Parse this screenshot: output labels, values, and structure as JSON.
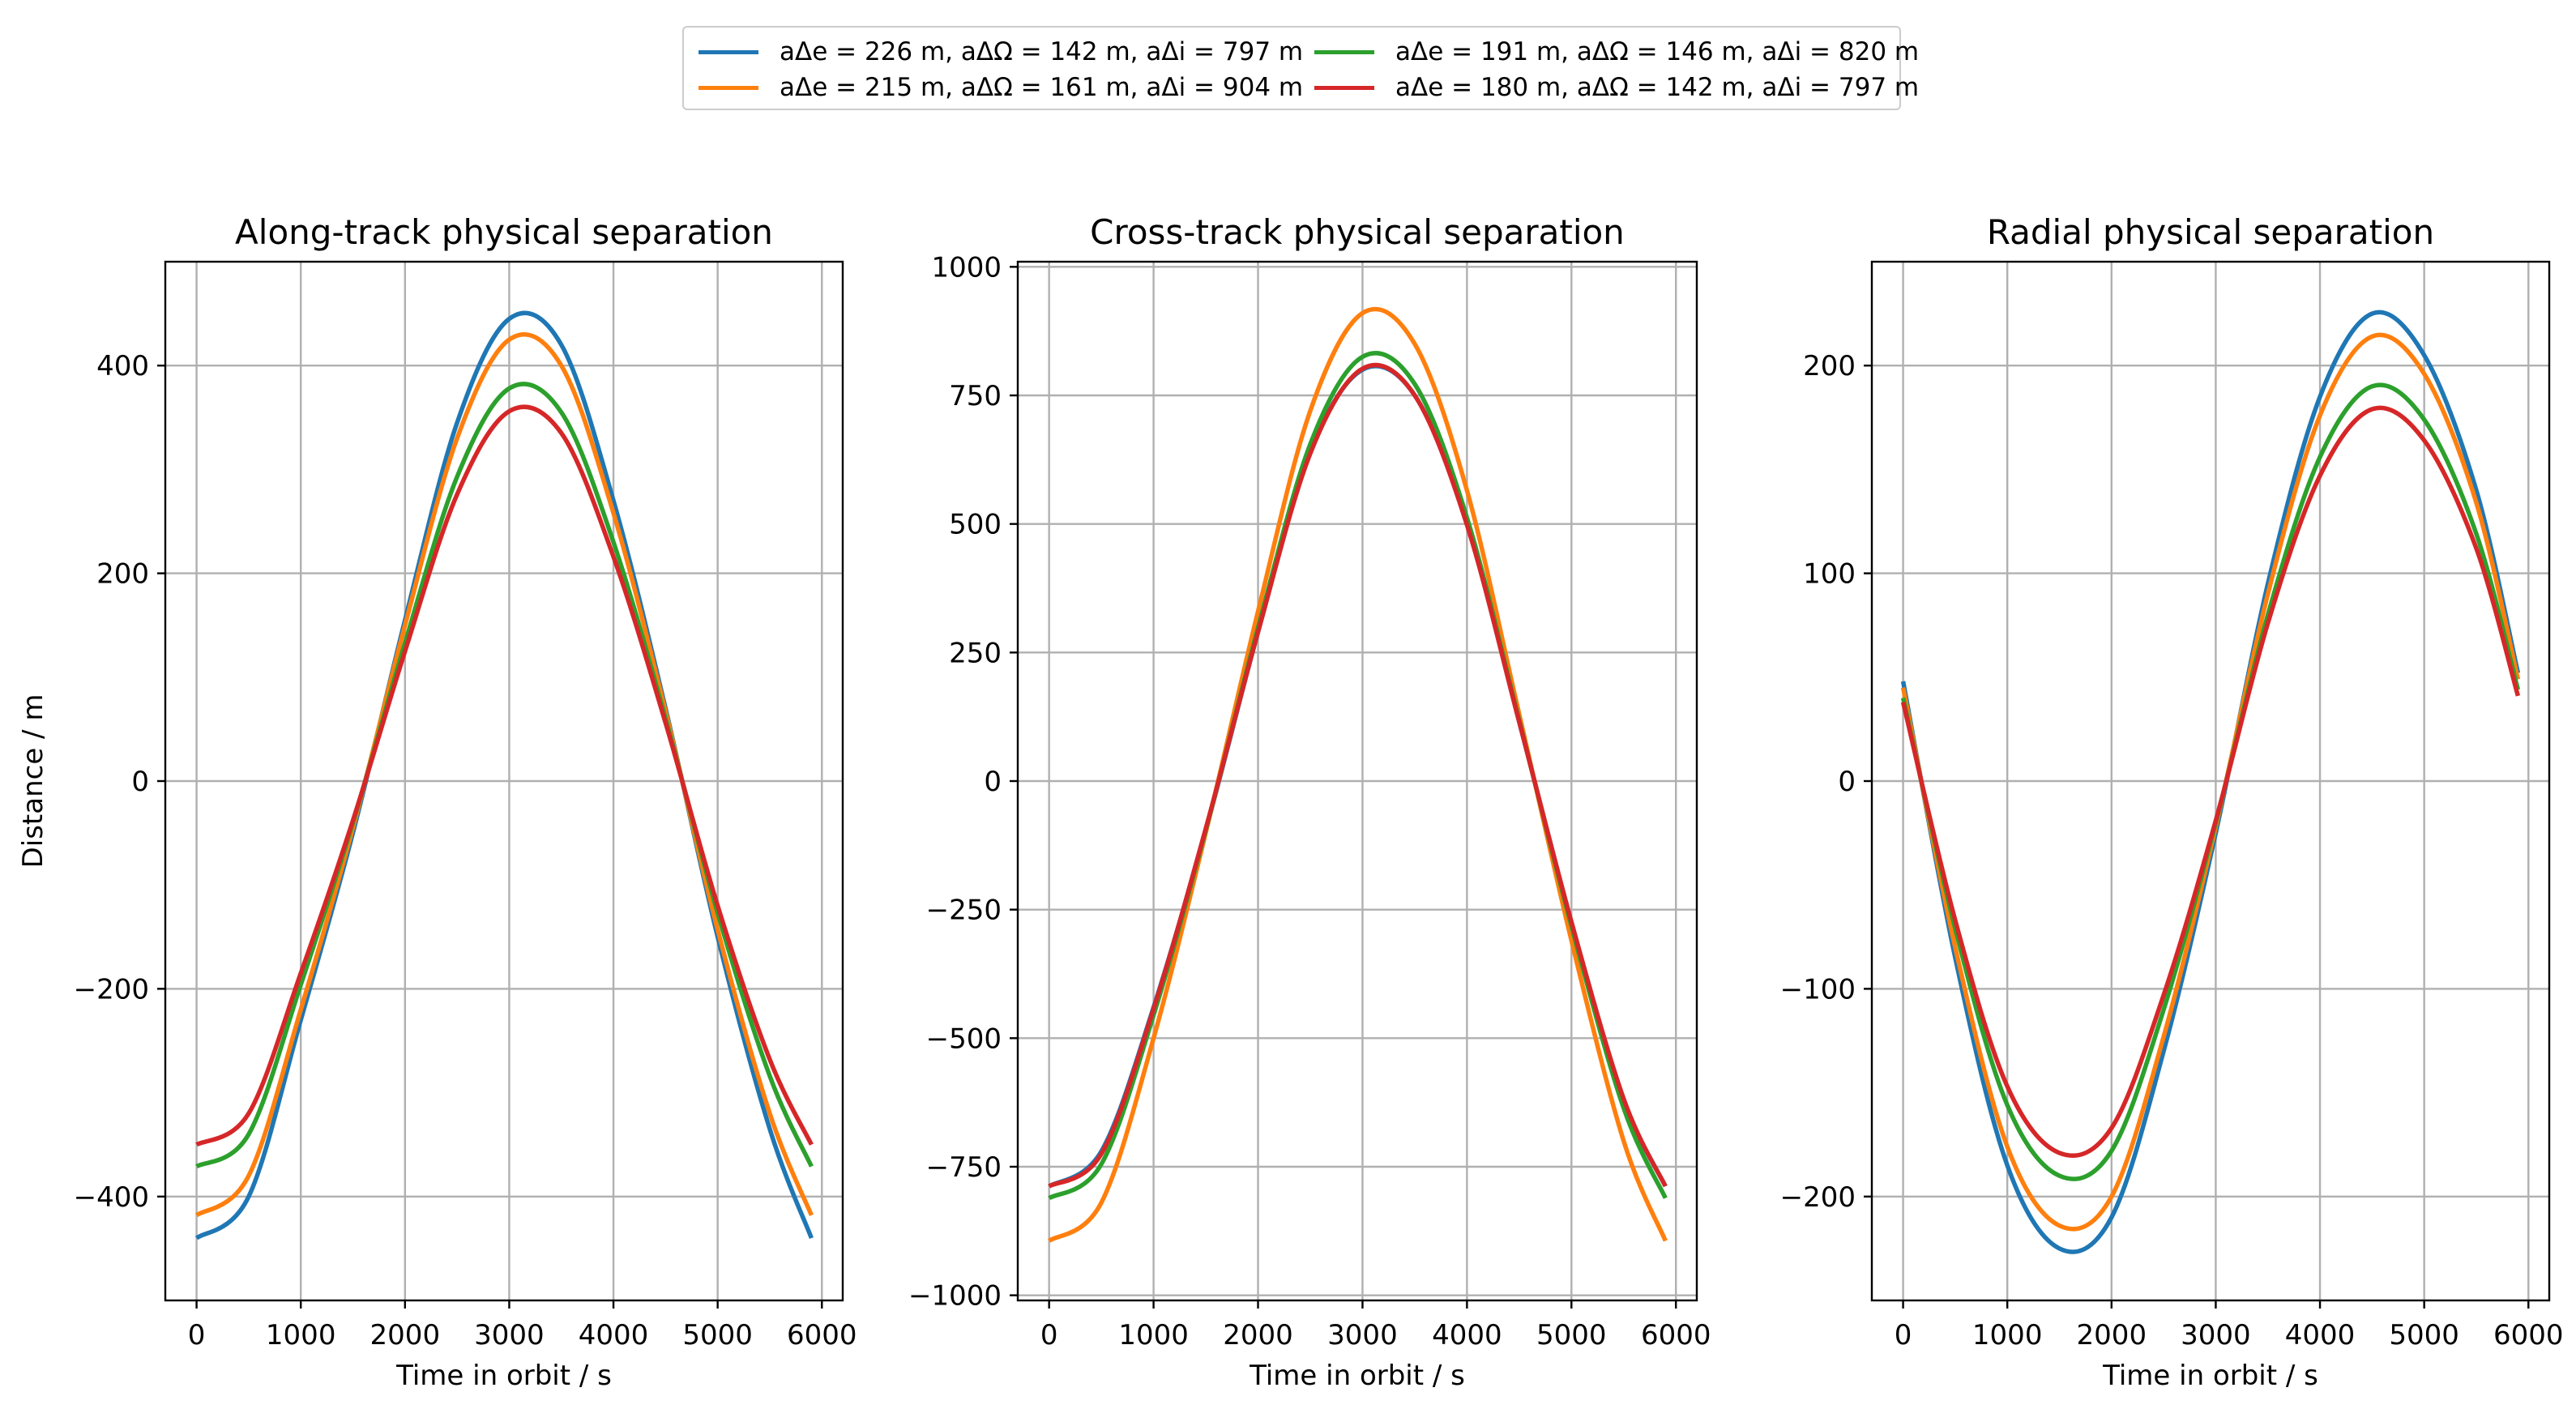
{
  "legend": {
    "entries": [
      {
        "label": "aΔe = 226 m,  aΔΩ = 142 m,  aΔi = 797 m",
        "color": "#1f77b4"
      },
      {
        "label": "aΔe = 215 m,  aΔΩ = 161 m,  aΔi = 904 m",
        "color": "#ff7f0e"
      },
      {
        "label": "aΔe = 191 m,  aΔΩ = 146 m,  aΔi = 820 m",
        "color": "#2ca02c"
      },
      {
        "label": "aΔe = 180 m,  aΔΩ = 142 m,  aΔi = 797 m",
        "color": "#d62728"
      }
    ]
  },
  "chart_data": [
    {
      "type": "line",
      "title": "Along-track physical separation",
      "xlabel": "Time in orbit / s",
      "ylabel": "Distance / m",
      "xlim": [
        -300,
        6200
      ],
      "ylim": [
        -500,
        500
      ],
      "xticks": [
        0,
        1000,
        2000,
        3000,
        4000,
        5000,
        6000
      ],
      "yticks": [
        -400,
        -200,
        0,
        200,
        400
      ],
      "grid": true,
      "x": [
        0,
        500,
        1000,
        1500,
        2000,
        2500,
        3000,
        3500,
        4000,
        4500,
        5000,
        5500,
        5900
      ],
      "series": [
        {
          "name": "aΔe = 226 m,  aΔΩ = 142 m,  aΔi = 797 m",
          "color": "#1f77b4",
          "values": [
            -440,
            -400,
            -230,
            -50,
            155,
            345,
            445,
            420,
            270,
            70,
            -150,
            -335,
            -440
          ]
        },
        {
          "name": "aΔe = 215 m,  aΔΩ = 161 m,  aΔi = 904 m",
          "color": "#ff7f0e",
          "values": [
            -418,
            -380,
            -220,
            -45,
            150,
            330,
            425,
            400,
            258,
            67,
            -143,
            -320,
            -418
          ]
        },
        {
          "name": "aΔe = 191 m,  aΔΩ = 146 m,  aΔi = 820 m",
          "color": "#2ca02c",
          "values": [
            -371,
            -340,
            -196,
            -40,
            133,
            293,
            378,
            355,
            230,
            60,
            -127,
            -284,
            -371
          ]
        },
        {
          "name": "aΔe = 180 m,  aΔΩ = 142 m,  aΔi = 797 m",
          "color": "#d62728",
          "values": [
            -350,
            -320,
            -185,
            -38,
            125,
            276,
            356,
            335,
            216,
            56,
            -120,
            -268,
            -350
          ]
        }
      ]
    },
    {
      "type": "line",
      "title": "Cross-track physical separation",
      "xlabel": "Time in orbit / s",
      "ylabel": "",
      "xlim": [
        -300,
        6200
      ],
      "ylim": [
        -1010,
        1010
      ],
      "xticks": [
        0,
        1000,
        2000,
        3000,
        4000,
        5000,
        6000
      ],
      "yticks": [
        -1000,
        -750,
        -500,
        -250,
        0,
        250,
        500,
        750,
        1000
      ],
      "grid": true,
      "x": [
        0,
        500,
        1000,
        1500,
        2000,
        2500,
        3000,
        3500,
        4000,
        4500,
        5000,
        5500,
        5900
      ],
      "series": [
        {
          "name": "aΔe = 226 m,  aΔΩ = 142 m,  aΔi = 797 m",
          "color": "#1f77b4",
          "values": [
            -788,
            -720,
            -440,
            -95,
            290,
            640,
            800,
            750,
            500,
            115,
            -275,
            -620,
            -788
          ]
        },
        {
          "name": "aΔe = 215 m,  aΔΩ = 161 m,  aΔi = 904 m",
          "color": "#ff7f0e",
          "values": [
            -894,
            -820,
            -500,
            -100,
            330,
            720,
            910,
            850,
            565,
            130,
            -310,
            -700,
            -894
          ]
        },
        {
          "name": "aΔe = 191 m,  aΔΩ = 146 m,  aΔi = 820 m",
          "color": "#2ca02c",
          "values": [
            -811,
            -745,
            -455,
            -95,
            298,
            655,
            825,
            772,
            512,
            118,
            -282,
            -636,
            -811
          ]
        },
        {
          "name": "aΔe = 180 m,  aΔΩ = 142 m,  aΔi = 797 m",
          "color": "#d62728",
          "values": [
            -788,
            -725,
            -443,
            -92,
            290,
            637,
            802,
            750,
            498,
            115,
            -274,
            -618,
            -788
          ]
        }
      ]
    },
    {
      "type": "line",
      "title": "Radial physical separation",
      "xlabel": "Time in orbit / s",
      "ylabel": "",
      "xlim": [
        -300,
        6200
      ],
      "ylim": [
        -250,
        250
      ],
      "xticks": [
        0,
        1000,
        2000,
        3000,
        4000,
        5000,
        6000
      ],
      "yticks": [
        -200,
        -100,
        0,
        100,
        200
      ],
      "grid": true,
      "x": [
        0,
        500,
        1000,
        1500,
        2000,
        2500,
        3000,
        3500,
        4000,
        4500,
        5000,
        5500,
        5900
      ],
      "series": [
        {
          "name": "aΔe = 226 m,  aΔΩ = 142 m,  aΔi = 797 m",
          "color": "#1f77b4",
          "values": [
            48,
            -85,
            -185,
            -225,
            -210,
            -130,
            -25,
            95,
            185,
            225,
            205,
            140,
            52
          ]
        },
        {
          "name": "aΔe = 215 m,  aΔΩ = 161 m,  aΔi = 904 m",
          "color": "#ff7f0e",
          "values": [
            45,
            -80,
            -176,
            -214,
            -200,
            -123,
            -22,
            90,
            176,
            214,
            196,
            134,
            49
          ]
        },
        {
          "name": "aΔe = 191 m,  aΔΩ = 146 m,  aΔi = 820 m",
          "color": "#2ca02c",
          "values": [
            40,
            -71,
            -156,
            -190,
            -178,
            -110,
            -20,
            80,
            156,
            190,
            174,
            119,
            44
          ]
        },
        {
          "name": "aΔe = 180 m,  aΔΩ = 142 m,  aΔi = 797 m",
          "color": "#d62728",
          "values": [
            38,
            -67,
            -147,
            -179,
            -167,
            -103,
            -19,
            76,
            147,
            179,
            164,
            112,
            41
          ]
        }
      ]
    }
  ]
}
